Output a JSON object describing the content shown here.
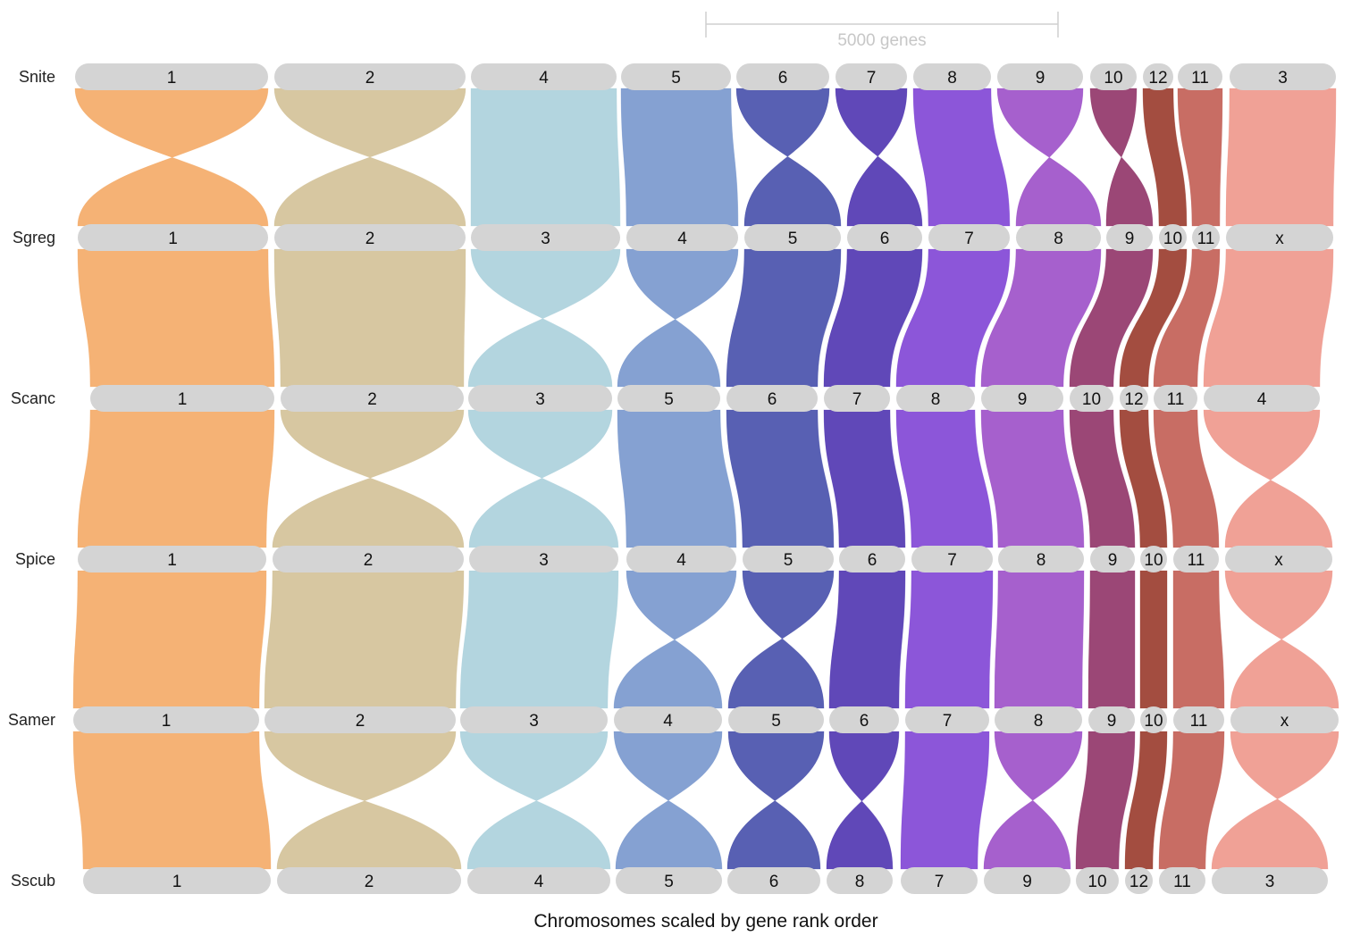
{
  "scale_bar": {
    "label": "5000 genes"
  },
  "caption": "Chromosomes scaled by gene rank order",
  "colors": {
    "chromosome_fill": "#d4d4d4",
    "ribbon_palette": [
      "#f4a762",
      "#d2bf94",
      "#a9cfdb",
      "#7494cc",
      "#414aa8",
      "#4a2fae",
      "#7c3fd4",
      "#9a4ac6",
      "#8d2e63",
      "#963426",
      "#c0594f",
      "#ee9488"
    ]
  },
  "genomes": [
    {
      "name": "Snite",
      "chromosomes": [
        "1",
        "2",
        "4",
        "5",
        "6",
        "7",
        "8",
        "9",
        "10",
        "12",
        "11",
        "3"
      ]
    },
    {
      "name": "Sgreg",
      "chromosomes": [
        "1",
        "2",
        "3",
        "4",
        "5",
        "6",
        "7",
        "8",
        "9",
        "10",
        "11",
        "x"
      ]
    },
    {
      "name": "Scanc",
      "chromosomes": [
        "1",
        "2",
        "3",
        "5",
        "6",
        "7",
        "8",
        "9",
        "10",
        "12",
        "11",
        "4"
      ]
    },
    {
      "name": "Spice",
      "chromosomes": [
        "1",
        "2",
        "3",
        "4",
        "5",
        "6",
        "7",
        "8",
        "9",
        "10",
        "11",
        "x"
      ]
    },
    {
      "name": "Samer",
      "chromosomes": [
        "1",
        "2",
        "3",
        "4",
        "5",
        "6",
        "7",
        "8",
        "9",
        "10",
        "11",
        "x"
      ]
    },
    {
      "name": "Sscub",
      "chromosomes": [
        "1",
        "2",
        "4",
        "5",
        "6",
        "8",
        "7",
        "9",
        "10",
        "12",
        "11",
        "3"
      ]
    }
  ]
}
